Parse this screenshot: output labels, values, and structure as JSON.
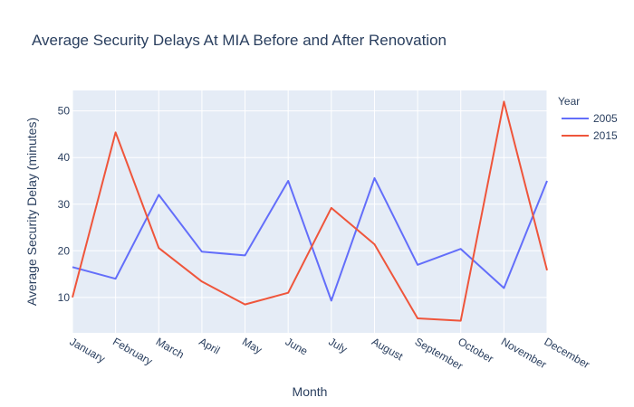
{
  "chart_data": {
    "type": "line",
    "title": "Average Security Delays At MIA Before and After Renovation",
    "xlabel": "Month",
    "ylabel": "Average Security Delay (minutes)",
    "categories": [
      "January",
      "February",
      "March",
      "April",
      "May",
      "June",
      "July",
      "August",
      "September",
      "October",
      "November",
      "December"
    ],
    "ylim": [
      2.4,
      54.4
    ],
    "yticks": [
      10,
      20,
      30,
      40,
      50
    ],
    "grid": true,
    "legend": {
      "title": "Year",
      "placement": "top-right"
    },
    "series": [
      {
        "name": "2005",
        "color": "#636efa",
        "values": [
          16.5,
          14.0,
          32.0,
          19.8,
          19.0,
          35.0,
          9.3,
          35.6,
          17.0,
          20.4,
          12.0,
          35.0
        ]
      },
      {
        "name": "2015",
        "color": "#ef553b",
        "values": [
          10.0,
          45.4,
          20.6,
          13.4,
          8.5,
          11.0,
          29.2,
          21.4,
          5.5,
          5.0,
          52.0,
          15.8
        ]
      }
    ],
    "colors": {
      "plot_background": "#e5ecf6",
      "grid": "#ffffff",
      "text": "#2a3f5f"
    }
  }
}
